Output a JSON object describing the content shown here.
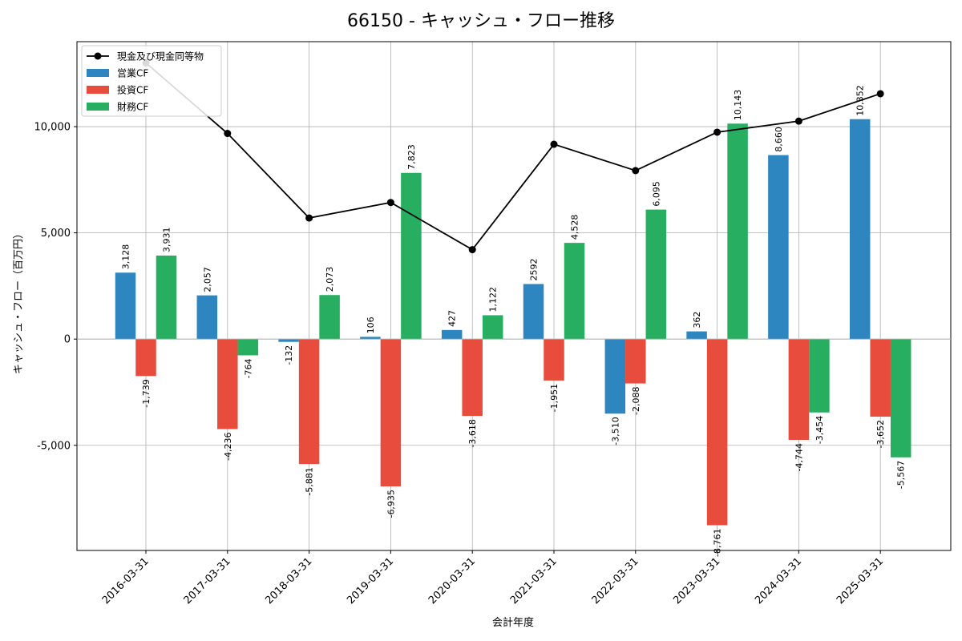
{
  "chart_data": {
    "type": "bar",
    "title": "66150 - キャッシュ・フロー推移",
    "xlabel": "会計年度",
    "ylabel": "キャッシュ・フロー（百万円）",
    "categories": [
      "2016-03-31",
      "2017-03-31",
      "2018-03-31",
      "2019-03-31",
      "2020-03-31",
      "2021-03-31",
      "2022-03-31",
      "2023-03-31",
      "2024-03-31",
      "2025-03-31"
    ],
    "ylim": [
      -9950,
      14000
    ],
    "yticks": [
      -5000,
      0,
      5000,
      10000
    ],
    "ytick_labels": [
      "-5,000",
      "0",
      "5,000",
      "10,000"
    ],
    "grid": true,
    "legend_position": "top-left",
    "series": [
      {
        "name": "営業CF",
        "kind": "bar",
        "color": "#2e86c1",
        "values": [
          3128,
          2057,
          -132,
          106,
          427,
          2592,
          -3510,
          362,
          8660,
          10352
        ],
        "labels": [
          "3,128",
          "2,057",
          "-132",
          "106",
          "427",
          "2592",
          "-3,510",
          "362",
          "8,660",
          "10,352"
        ]
      },
      {
        "name": "投資CF",
        "kind": "bar",
        "color": "#e74c3c",
        "values": [
          -1739,
          -4236,
          -5881,
          -6935,
          -3618,
          -1951,
          -2088,
          -8761,
          -4744,
          -3652
        ],
        "labels": [
          "-1,739",
          "-4,236",
          "-5,881",
          "-6,935",
          "-3,618",
          "-1,951",
          "-2,088",
          "-8,761",
          "-4,744",
          "-3,652"
        ]
      },
      {
        "name": "財務CF",
        "kind": "bar",
        "color": "#27ae60",
        "values": [
          3931,
          -764,
          2073,
          7823,
          1122,
          4528,
          6095,
          10143,
          -3454,
          -5567
        ],
        "labels": [
          "3,931",
          "-764",
          "2,073",
          "7,823",
          "1,122",
          "4,528",
          "6,095",
          "10,143",
          "-3,454",
          "-5,567"
        ]
      },
      {
        "name": "現金及び現金同等物",
        "kind": "line",
        "color": "#000000",
        "values": [
          13000,
          9680,
          5700,
          6430,
          4210,
          9170,
          7930,
          9740,
          10260,
          11550
        ]
      }
    ]
  }
}
